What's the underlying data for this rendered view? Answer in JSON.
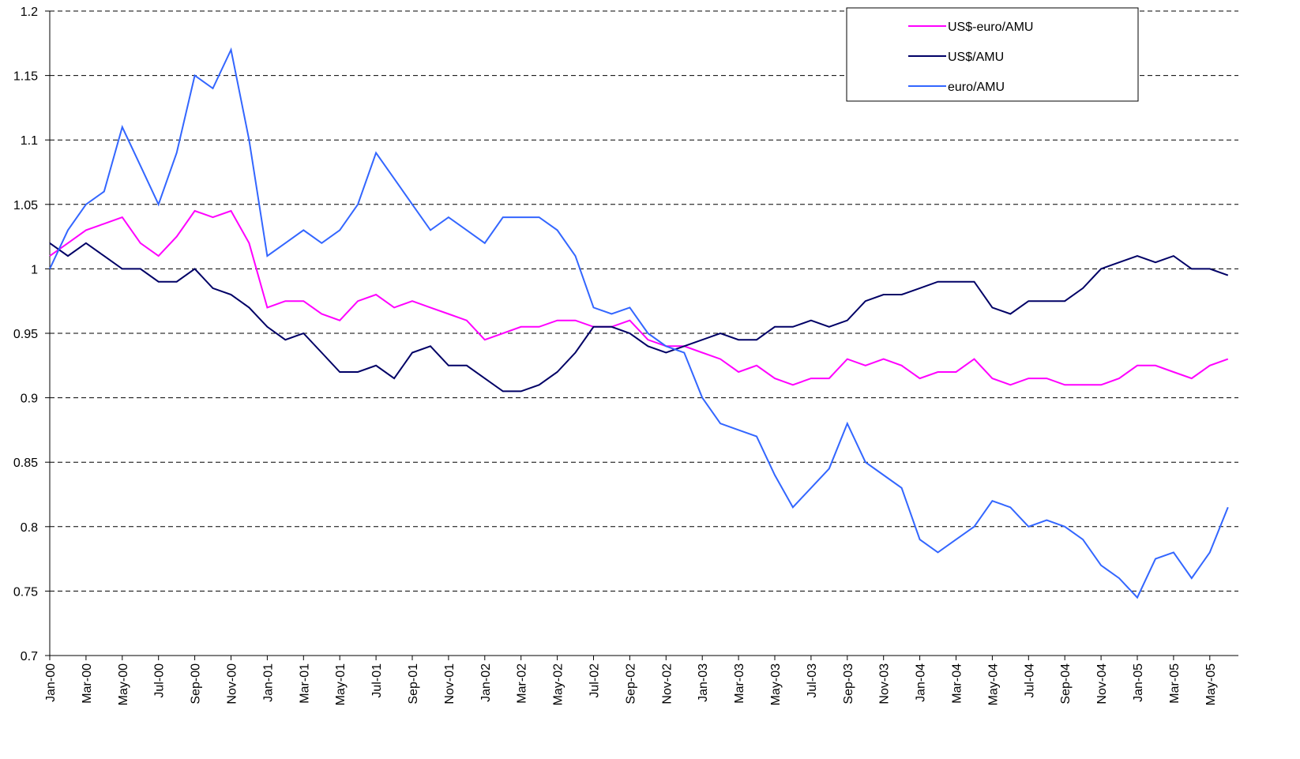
{
  "chart_data": {
    "type": "line",
    "categories": [
      "Jan-00",
      null,
      "Mar-00",
      null,
      "May-00",
      null,
      "Jul-00",
      null,
      "Sep-00",
      null,
      "Nov-00",
      null,
      "Jan-01",
      null,
      "Mar-01",
      null,
      "May-01",
      null,
      "Jul-01",
      null,
      "Sep-01",
      null,
      "Nov-01",
      null,
      "Jan-02",
      null,
      "Mar-02",
      null,
      "May-02",
      null,
      "Jul-02",
      null,
      "Sep-02",
      null,
      "Nov-02",
      null,
      "Jan-03",
      null,
      "Mar-03",
      null,
      "May-03",
      null,
      "Jul-03",
      null,
      "Sep-03",
      null,
      "Nov-03",
      null,
      "Jan-04",
      null,
      "Mar-04",
      null,
      "May-04",
      null,
      "Jul-04",
      null,
      "Sep-04",
      null,
      "Nov-04",
      null,
      "Jan-05",
      null,
      "Mar-05",
      null,
      "May-05",
      null
    ],
    "series": [
      {
        "name": "US$-euro/AMU",
        "color": "#ff00ff",
        "values": [
          1.01,
          1.02,
          1.03,
          1.035,
          1.04,
          1.02,
          1.01,
          1.025,
          1.045,
          1.04,
          1.045,
          1.02,
          0.97,
          0.975,
          0.975,
          0.965,
          0.96,
          0.975,
          0.98,
          0.97,
          0.975,
          0.97,
          0.965,
          0.96,
          0.945,
          0.95,
          0.955,
          0.955,
          0.96,
          0.96,
          0.955,
          0.955,
          0.96,
          0.945,
          0.94,
          0.94,
          0.935,
          0.93,
          0.92,
          0.925,
          0.915,
          0.91,
          0.915,
          0.915,
          0.93,
          0.925,
          0.93,
          0.925,
          0.915,
          0.92,
          0.92,
          0.93,
          0.915,
          0.91,
          0.915,
          0.915,
          0.91,
          0.91,
          0.91,
          0.915,
          0.925,
          0.925,
          0.92,
          0.915,
          0.925,
          0.93
        ]
      },
      {
        "name": "US$/AMU",
        "color": "#000066",
        "values": [
          1.02,
          1.01,
          1.02,
          1.01,
          1.0,
          1.0,
          0.99,
          0.99,
          1.0,
          0.985,
          0.98,
          0.97,
          0.955,
          0.945,
          0.95,
          0.935,
          0.92,
          0.92,
          0.925,
          0.915,
          0.935,
          0.94,
          0.925,
          0.925,
          0.915,
          0.905,
          0.905,
          0.91,
          0.92,
          0.935,
          0.955,
          0.955,
          0.95,
          0.94,
          0.935,
          0.94,
          0.945,
          0.95,
          0.945,
          0.945,
          0.955,
          0.955,
          0.96,
          0.955,
          0.96,
          0.975,
          0.98,
          0.98,
          0.985,
          0.99,
          0.99,
          0.99,
          0.97,
          0.965,
          0.975,
          0.975,
          0.975,
          0.985,
          1.0,
          1.005,
          1.01,
          1.005,
          1.01,
          1.0,
          1.0,
          0.995
        ]
      },
      {
        "name": "euro/AMU",
        "color": "#3366ff",
        "values": [
          1.0,
          1.03,
          1.05,
          1.06,
          1.11,
          1.08,
          1.05,
          1.09,
          1.15,
          1.14,
          1.17,
          1.1,
          1.01,
          1.02,
          1.03,
          1.02,
          1.03,
          1.05,
          1.09,
          1.07,
          1.05,
          1.03,
          1.04,
          1.03,
          1.02,
          1.04,
          1.04,
          1.04,
          1.03,
          1.01,
          0.97,
          0.965,
          0.97,
          0.95,
          0.94,
          0.935,
          0.9,
          0.88,
          0.875,
          0.87,
          0.84,
          0.815,
          0.83,
          0.845,
          0.88,
          0.85,
          0.84,
          0.83,
          0.79,
          0.78,
          0.79,
          0.8,
          0.82,
          0.815,
          0.8,
          0.805,
          0.8,
          0.79,
          0.77,
          0.76,
          0.745,
          0.775,
          0.78,
          0.76,
          0.78,
          0.815
        ]
      }
    ],
    "ylim": [
      0.7,
      1.2
    ],
    "yticks": [
      0.7,
      0.75,
      0.8,
      0.85,
      0.9,
      0.95,
      1,
      1.05,
      1.1,
      1.15,
      1.2
    ],
    "grid": true
  }
}
